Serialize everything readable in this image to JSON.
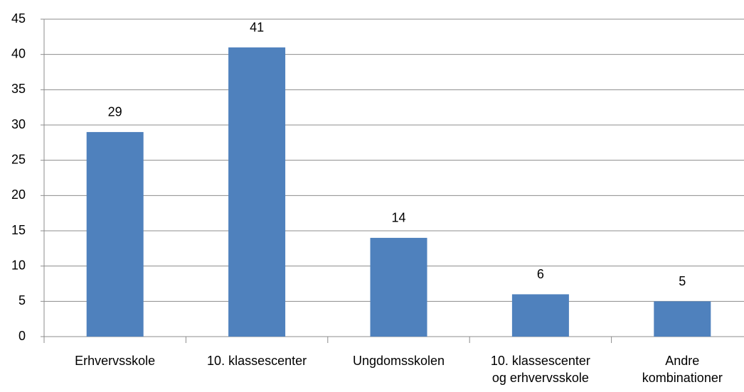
{
  "chart_data": {
    "type": "bar",
    "categories": [
      "Erhvervsskole",
      "10. klassescenter",
      "Ungdomsskolen",
      "10. klassescenter\nog erhvervsskole",
      "Andre\nkombinationer"
    ],
    "values": [
      29,
      41,
      14,
      6,
      5
    ],
    "color": "#4f81bd",
    "ylim": [
      0,
      45
    ],
    "yticks": [
      0,
      5,
      10,
      15,
      20,
      25,
      30,
      35,
      40,
      45
    ],
    "grid": true,
    "data_labels": true
  }
}
